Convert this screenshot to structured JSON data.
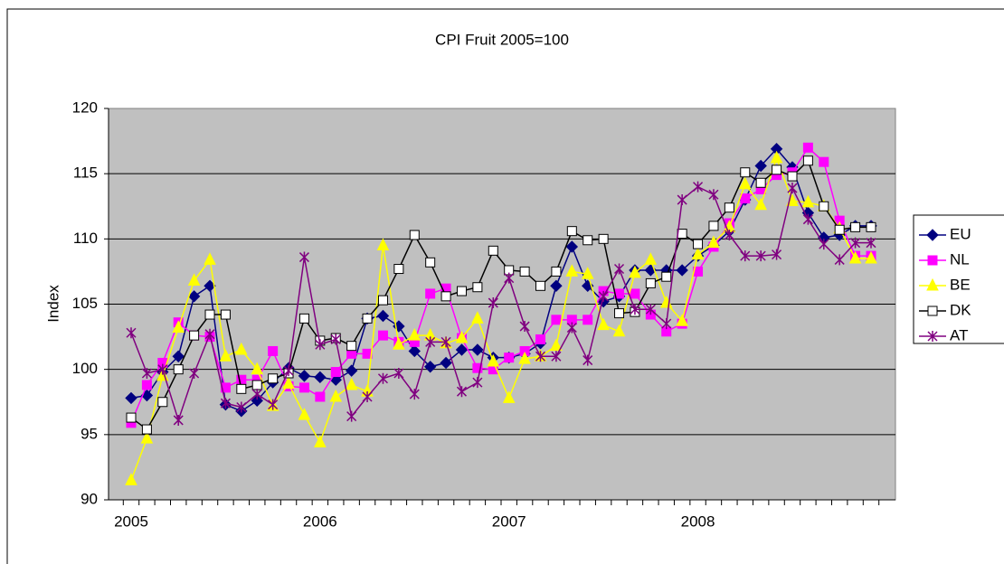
{
  "chart_data": {
    "type": "line",
    "title": "CPI Fruit 2005=100",
    "y_label": "Index",
    "categories": [
      "2005",
      null,
      null,
      null,
      null,
      null,
      null,
      null,
      null,
      null,
      null,
      null,
      "2006",
      null,
      null,
      null,
      null,
      null,
      null,
      null,
      null,
      null,
      null,
      null,
      "2007",
      null,
      null,
      null,
      null,
      null,
      null,
      null,
      null,
      null,
      null,
      null,
      "2008",
      null,
      null,
      null,
      null,
      null,
      null,
      null,
      null,
      null,
      null,
      null
    ],
    "ylim": [
      90,
      120
    ],
    "yticks": [
      90,
      95,
      100,
      105,
      110,
      115,
      120
    ],
    "grid": true,
    "legend": "right",
    "series": [
      {
        "name": "EU",
        "color": "#000080",
        "marker": "diamond",
        "values": [
          97.8,
          98.0,
          99.8,
          101.0,
          105.6,
          106.4,
          97.3,
          96.8,
          97.6,
          99.0,
          100.1,
          99.5,
          99.4,
          99.2,
          99.9,
          103.9,
          104.1,
          103.3,
          101.4,
          100.2,
          100.5,
          101.5,
          101.5,
          100.9,
          100.9,
          101.2,
          102.0,
          106.4,
          109.4,
          106.4,
          105.2,
          105.6,
          107.6,
          107.6,
          107.6,
          107.6,
          108.7,
          109.5,
          110.6,
          113.0,
          115.6,
          116.9,
          115.5,
          112.0,
          110.1,
          110.3,
          111.0,
          111.0
        ]
      },
      {
        "name": "NL",
        "color": "#ff00ff",
        "marker": "square",
        "values": [
          95.9,
          98.8,
          100.5,
          103.6,
          102.6,
          102.5,
          98.6,
          99.2,
          99.2,
          101.4,
          98.7,
          98.6,
          97.9,
          99.8,
          101.2,
          101.2,
          102.6,
          102.1,
          102.1,
          105.8,
          106.2,
          102.4,
          100.1,
          100.0,
          100.9,
          101.4,
          102.3,
          103.8,
          103.8,
          103.8,
          106.0,
          105.8,
          105.8,
          104.2,
          102.9,
          103.5,
          107.5,
          109.4,
          111.2,
          113.1,
          113.8,
          114.9,
          115.1,
          117.0,
          115.9,
          111.4,
          108.7,
          108.7
        ]
      },
      {
        "name": "BE",
        "color": "#ffff00",
        "marker": "triangle",
        "values": [
          91.5,
          94.7,
          99.5,
          103.2,
          106.8,
          108.4,
          101.0,
          101.5,
          100.0,
          97.2,
          98.9,
          96.5,
          94.4,
          97.9,
          98.8,
          98.3,
          109.5,
          101.9,
          102.6,
          102.6,
          102.0,
          102.4,
          103.9,
          100.6,
          97.8,
          100.8,
          101.0,
          101.8,
          107.5,
          107.3,
          103.4,
          102.9,
          107.4,
          108.4,
          105.1,
          103.7,
          108.8,
          109.7,
          110.9,
          114.2,
          112.6,
          116.2,
          112.9,
          112.8,
          112.5,
          110.8,
          108.5,
          108.5
        ]
      },
      {
        "name": "DK",
        "color": "#000000",
        "marker": "open-square",
        "values": [
          96.3,
          95.4,
          97.5,
          100.0,
          102.6,
          104.2,
          104.2,
          98.5,
          98.8,
          99.3,
          99.7,
          103.9,
          102.2,
          102.4,
          101.8,
          103.9,
          105.3,
          107.7,
          110.3,
          108.2,
          105.6,
          106.0,
          106.3,
          109.1,
          107.6,
          107.5,
          106.4,
          107.5,
          110.6,
          109.9,
          110.0,
          104.3,
          104.4,
          106.6,
          107.1,
          110.4,
          109.6,
          111.0,
          112.4,
          115.1,
          114.3,
          115.3,
          114.8,
          116.0,
          112.5,
          110.7,
          110.9,
          110.9
        ]
      },
      {
        "name": "AT",
        "color": "#800080",
        "marker": "asterisk",
        "values": [
          102.8,
          99.7,
          100.0,
          96.1,
          99.7,
          102.7,
          97.4,
          97.1,
          98.1,
          97.3,
          99.9,
          108.6,
          101.9,
          102.3,
          96.4,
          97.9,
          99.3,
          99.7,
          98.1,
          102.1,
          102.1,
          98.3,
          99.0,
          105.1,
          107.0,
          103.3,
          101.0,
          101.0,
          103.2,
          100.7,
          105.6,
          107.7,
          104.6,
          104.6,
          103.5,
          113.0,
          114.0,
          113.4,
          110.3,
          108.7,
          108.7,
          108.8,
          113.9,
          111.5,
          109.6,
          108.4,
          109.7,
          109.7
        ]
      }
    ]
  }
}
